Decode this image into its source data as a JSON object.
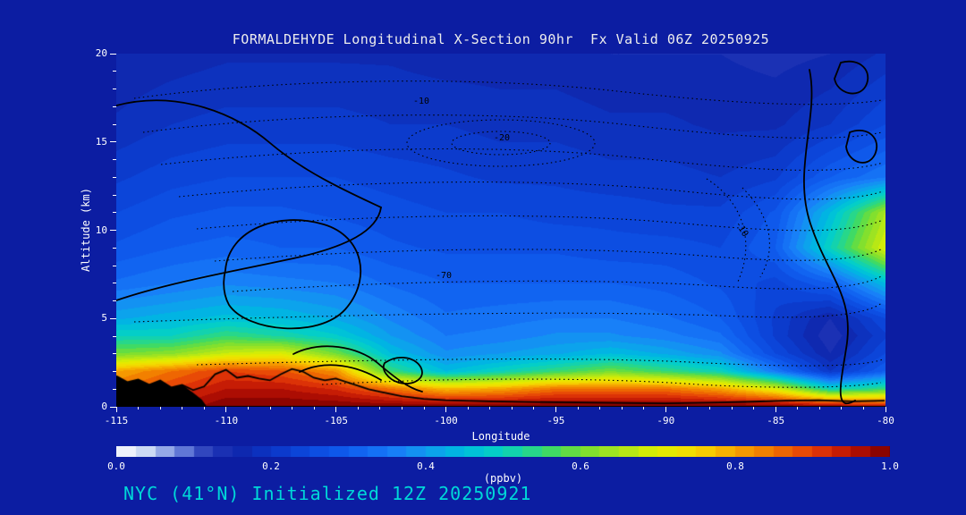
{
  "page": {
    "background": "#0c1da2",
    "text_color": "#ffffff"
  },
  "footer": {
    "text": "NYC (41°N) Initialized 12Z 20250921",
    "color": "#00d8d8"
  },
  "chart_data": {
    "type": "heatmap",
    "title": "FORMALDEHYDE Longitudinal X-Section 90hr  Fx Valid 06Z 20250925",
    "xlabel": "Longitude",
    "ylabel": "Altitude (km)",
    "colorbar_label": "(ppbv)",
    "xlim": [
      -115,
      -80
    ],
    "ylim": [
      0,
      20
    ],
    "clim": [
      0,
      1
    ],
    "x_ticks": [
      -115,
      -110,
      -105,
      -100,
      -95,
      -90,
      -85,
      -80
    ],
    "y_ticks": [
      0,
      5,
      10,
      15,
      20
    ],
    "colorbar_ticks": [
      0,
      0.2,
      0.4,
      0.6,
      0.8,
      1
    ],
    "grid": {
      "lons": [
        -115,
        -112.5,
        -110,
        -107.5,
        -105,
        -102.5,
        -100,
        -97.5,
        -95,
        -92.5,
        -90,
        -87.5,
        -85,
        -82.5,
        -80
      ],
      "alts_km": [
        0,
        1,
        2,
        3,
        4,
        5,
        7,
        9,
        11,
        13,
        16,
        20
      ],
      "values_ppbv": [
        [
          0.9,
          0.95,
          1.0,
          1.0,
          1.0,
          1.0,
          1.0,
          1.0,
          1.0,
          1.0,
          1.0,
          1.0,
          1.0,
          0.98,
          0.95
        ],
        [
          0.85,
          0.9,
          0.95,
          0.95,
          0.92,
          0.85,
          0.78,
          0.8,
          0.85,
          0.85,
          0.85,
          0.8,
          0.7,
          0.5,
          0.55
        ],
        [
          0.8,
          0.85,
          0.9,
          0.88,
          0.82,
          0.55,
          0.45,
          0.5,
          0.55,
          0.6,
          0.55,
          0.5,
          0.35,
          0.2,
          0.3
        ],
        [
          0.6,
          0.62,
          0.68,
          0.7,
          0.6,
          0.45,
          0.38,
          0.4,
          0.42,
          0.45,
          0.42,
          0.38,
          0.25,
          0.15,
          0.25
        ],
        [
          0.5,
          0.5,
          0.55,
          0.52,
          0.48,
          0.4,
          0.35,
          0.36,
          0.38,
          0.38,
          0.36,
          0.33,
          0.22,
          0.13,
          0.22
        ],
        [
          0.42,
          0.44,
          0.46,
          0.45,
          0.42,
          0.37,
          0.33,
          0.34,
          0.35,
          0.35,
          0.33,
          0.3,
          0.22,
          0.15,
          0.25
        ],
        [
          0.33,
          0.35,
          0.37,
          0.36,
          0.35,
          0.32,
          0.3,
          0.3,
          0.3,
          0.3,
          0.29,
          0.27,
          0.24,
          0.3,
          0.45
        ],
        [
          0.28,
          0.3,
          0.31,
          0.3,
          0.3,
          0.28,
          0.27,
          0.27,
          0.27,
          0.26,
          0.26,
          0.25,
          0.3,
          0.5,
          0.7
        ],
        [
          0.25,
          0.27,
          0.28,
          0.28,
          0.27,
          0.26,
          0.25,
          0.25,
          0.24,
          0.24,
          0.23,
          0.23,
          0.28,
          0.45,
          0.65
        ],
        [
          0.22,
          0.24,
          0.25,
          0.25,
          0.25,
          0.24,
          0.23,
          0.22,
          0.22,
          0.21,
          0.21,
          0.2,
          0.22,
          0.3,
          0.35
        ],
        [
          0.18,
          0.2,
          0.21,
          0.21,
          0.21,
          0.2,
          0.2,
          0.19,
          0.19,
          0.18,
          0.18,
          0.17,
          0.17,
          0.2,
          0.25
        ],
        [
          0.15,
          0.16,
          0.17,
          0.17,
          0.17,
          0.17,
          0.16,
          0.16,
          0.16,
          0.15,
          0.15,
          0.15,
          0.14,
          0.15,
          0.18
        ]
      ]
    },
    "terrain_km": [
      [
        -115,
        1.7
      ],
      [
        -114.5,
        1.35
      ],
      [
        -114,
        1.5
      ],
      [
        -113.5,
        1.2
      ],
      [
        -113,
        1.45
      ],
      [
        -112.5,
        1.05
      ],
      [
        -112,
        1.2
      ],
      [
        -111.5,
        0.9
      ],
      [
        -111,
        1.1
      ],
      [
        -110.5,
        1.8
      ],
      [
        -110,
        2.05
      ],
      [
        -109.5,
        1.6
      ],
      [
        -109,
        1.7
      ],
      [
        -108.5,
        1.55
      ],
      [
        -108,
        1.45
      ],
      [
        -107.5,
        1.8
      ],
      [
        -107,
        2.1
      ],
      [
        -106.5,
        1.95
      ],
      [
        -106,
        1.6
      ],
      [
        -105.5,
        1.45
      ],
      [
        -105,
        1.55
      ],
      [
        -104.5,
        1.35
      ],
      [
        -104,
        1.15
      ],
      [
        -103.5,
        0.95
      ],
      [
        -103,
        0.8
      ],
      [
        -102,
        0.55
      ],
      [
        -101,
        0.4
      ],
      [
        -100,
        0.32
      ],
      [
        -98,
        0.26
      ],
      [
        -96,
        0.22
      ],
      [
        -94,
        0.2
      ],
      [
        -92,
        0.17
      ],
      [
        -90,
        0.15
      ],
      [
        -88,
        0.18
      ],
      [
        -86,
        0.24
      ],
      [
        -84.5,
        0.3
      ],
      [
        -83,
        0.32
      ],
      [
        -81.5,
        0.26
      ],
      [
        -80,
        0.3
      ]
    ],
    "terrain_wedge_km": [
      [
        -115,
        1.7
      ],
      [
        -114.5,
        1.35
      ],
      [
        -114,
        1.5
      ],
      [
        -113.5,
        1.2
      ],
      [
        -113,
        1.45
      ],
      [
        -112.5,
        1.05
      ],
      [
        -112,
        1.2
      ],
      [
        -111.5,
        0.75
      ],
      [
        -111.1,
        0.35
      ],
      [
        -110.9,
        0
      ]
    ],
    "colormap": [
      [
        0.0,
        "#ffffff"
      ],
      [
        0.04,
        "#c9d8f4"
      ],
      [
        0.08,
        "#6e86dd"
      ],
      [
        0.12,
        "#2438b8"
      ],
      [
        0.16,
        "#0f28ae"
      ],
      [
        0.2,
        "#0c36c6"
      ],
      [
        0.24,
        "#0c46da"
      ],
      [
        0.28,
        "#0e55e9"
      ],
      [
        0.32,
        "#1268f3"
      ],
      [
        0.36,
        "#187ef8"
      ],
      [
        0.4,
        "#119bf0"
      ],
      [
        0.44,
        "#00b6e2"
      ],
      [
        0.48,
        "#00ccd0"
      ],
      [
        0.52,
        "#17d4a6"
      ],
      [
        0.56,
        "#3cda68"
      ],
      [
        0.6,
        "#74de34"
      ],
      [
        0.65,
        "#abe51c"
      ],
      [
        0.7,
        "#dff000"
      ],
      [
        0.75,
        "#f6da00"
      ],
      [
        0.8,
        "#f7a500"
      ],
      [
        0.85,
        "#f07400"
      ],
      [
        0.9,
        "#e63c08"
      ],
      [
        0.95,
        "#bc1204"
      ],
      [
        1.0,
        "#7c0000"
      ]
    ],
    "contour_labels": [
      {
        "text": "-10",
        "x": 332,
        "y": 56,
        "rot": 0
      },
      {
        "text": "-20",
        "x": 422,
        "y": 97,
        "rot": 0
      },
      {
        "text": "-70",
        "x": 357,
        "y": 251,
        "rot": 0
      },
      {
        "text": "-10",
        "x": 692,
        "y": 190,
        "rot": 58
      }
    ]
  }
}
